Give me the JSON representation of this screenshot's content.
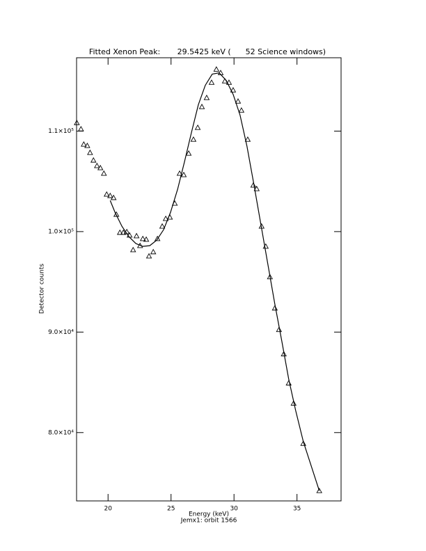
{
  "chart_data": {
    "type": "scatter",
    "title": "Fitted Xenon Peak:       29.5425 keV (      52 Science windows)",
    "xlabel": "Energy (keV)",
    "subtitle": "Jemx1: orbit 1566",
    "ylabel": "Detector counts",
    "xlim": [
      17.5,
      38.5
    ],
    "xticks": [
      20,
      25,
      30,
      35
    ],
    "ylim": [
      73200,
      117300
    ],
    "yticks": [
      {
        "value": 80000,
        "label": "8.0×10⁴"
      },
      {
        "value": 90000,
        "label": "9.0×10⁴"
      },
      {
        "value": 100000,
        "label": "1.0×10⁵"
      },
      {
        "value": 110000,
        "label": "1.1×10⁵"
      }
    ],
    "series": [
      {
        "marker": "triangle",
        "color": "#000000",
        "x": [
          17.52,
          17.85,
          18.07,
          18.35,
          18.57,
          18.84,
          19.12,
          19.39,
          19.67,
          19.89,
          20.17,
          20.44,
          20.66,
          20.94,
          21.21,
          21.49,
          21.71,
          21.99,
          22.26,
          22.54,
          22.76,
          23.03,
          23.25,
          23.59,
          23.92,
          24.3,
          24.58,
          24.91,
          25.3,
          25.68,
          26.01,
          26.4,
          26.78,
          27.12,
          27.45,
          27.83,
          28.22,
          28.6,
          28.94,
          29.27,
          29.6,
          29.93,
          30.32,
          30.59,
          31.09,
          31.53,
          31.8,
          32.19,
          32.52,
          32.85,
          33.24,
          33.57,
          33.95,
          34.34,
          34.73,
          35.5,
          36.77
        ],
        "values": [
          110830,
          110210,
          108690,
          108550,
          107860,
          107100,
          106550,
          106340,
          105790,
          103710,
          103570,
          103370,
          101710,
          99910,
          99910,
          99980,
          99640,
          98180,
          99570,
          98600,
          99290,
          99220,
          97560,
          97980,
          99290,
          100530,
          101290,
          101430,
          102810,
          105790,
          105650,
          107790,
          109170,
          110350,
          112420,
          113320,
          114840,
          116150,
          115800,
          114980,
          114840,
          114080,
          112970,
          112070,
          109170,
          104610,
          104260,
          100530,
          98530,
          95490,
          92380,
          90240,
          87820,
          84920,
          82910,
          78910,
          74210
        ]
      },
      {
        "marker": "line",
        "color": "#000000",
        "x": [
          20.17,
          20.55,
          21.1,
          21.65,
          22.21,
          22.76,
          23.31,
          23.86,
          24.41,
          24.96,
          25.52,
          26.07,
          26.62,
          27.17,
          27.72,
          28.27,
          28.82,
          29.38,
          29.93,
          30.48,
          31.03,
          31.58,
          32.13,
          32.69,
          33.24,
          33.79,
          34.34,
          34.89,
          35.5,
          36.77
        ],
        "values": [
          103090,
          101920,
          100530,
          99500,
          98810,
          98530,
          98600,
          99150,
          100190,
          101920,
          104200,
          106960,
          109860,
          112630,
          114560,
          115670,
          115800,
          115040,
          113660,
          111590,
          108480,
          104680,
          100740,
          96730,
          92790,
          89130,
          85330,
          82220,
          79110,
          74210
        ]
      }
    ]
  }
}
